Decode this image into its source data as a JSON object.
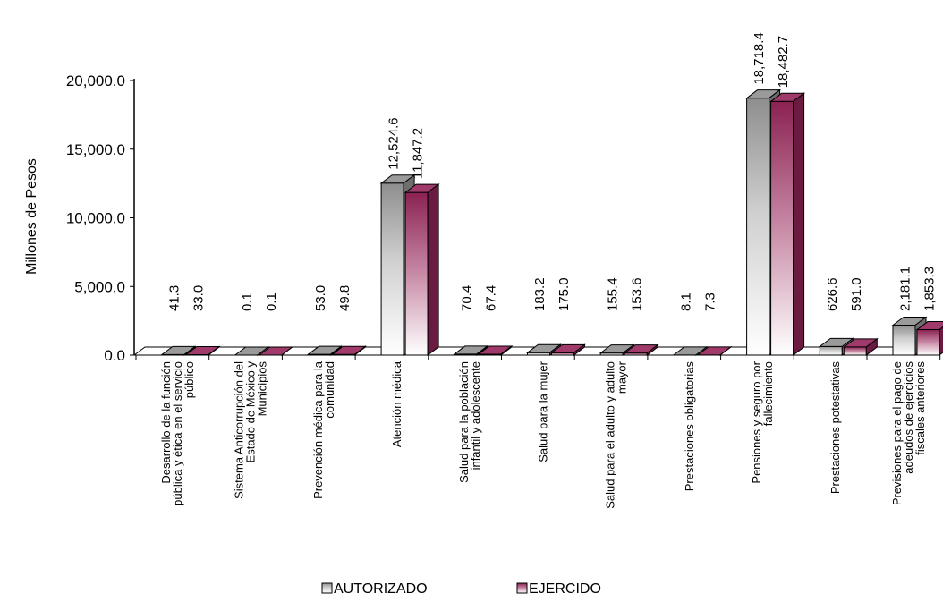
{
  "chart_data": {
    "type": "bar",
    "ylabel": "Millones de Pesos",
    "ylim": [
      0,
      20000
    ],
    "yticks": [
      "0.0",
      "5,000.0",
      "10,000.0",
      "15,000.0",
      "20,000.0"
    ],
    "categories": [
      [
        "Desarrollo de la función",
        "pública y ética en el servicio",
        "público"
      ],
      [
        "Sistema Anticorrupción del",
        "Estado de México y",
        "Municipios"
      ],
      [
        "Prevención médica para la",
        "comunidad"
      ],
      [
        "Atención médica"
      ],
      [
        "Salud para la población",
        "infantil y adolescente"
      ],
      [
        "Salud para la mujer"
      ],
      [
        "Salud para el adulto y adulto",
        "mayor"
      ],
      [
        "Prestaciones obligatorias"
      ],
      [
        "Pensiones y seguro por",
        "fallecimiento"
      ],
      [
        "Prestaciones potestativas"
      ],
      [
        "Previsiones para el pago de",
        "adeudos de ejercicios",
        "fiscales anteriores"
      ]
    ],
    "series": [
      {
        "name": "AUTORIZADO",
        "color": "#8c8c8c",
        "values": [
          41.3,
          0.1,
          53.0,
          12524.6,
          70.4,
          183.2,
          155.4,
          8.1,
          18718.4,
          626.6,
          2181.1
        ],
        "labels": [
          "41.3",
          "0.1",
          "53.0",
          "12,524.6",
          "70.4",
          "183.2",
          "155.4",
          "8.1",
          "18,718.4",
          "626.6",
          "2,181.1"
        ]
      },
      {
        "name": "EJERCIDO",
        "color": "#8b2252",
        "values": [
          33.0,
          0.1,
          49.8,
          11847.2,
          67.4,
          175.0,
          153.6,
          7.3,
          18482.7,
          591.0,
          1853.3
        ],
        "labels": [
          "33.0",
          "0.1",
          "49.8",
          "11,847.2",
          "67.4",
          "175.0",
          "153.6",
          "7.3",
          "18,482.7",
          "591.0",
          "1,853.3"
        ]
      }
    ],
    "legend": "bottom-center",
    "grid": false
  }
}
